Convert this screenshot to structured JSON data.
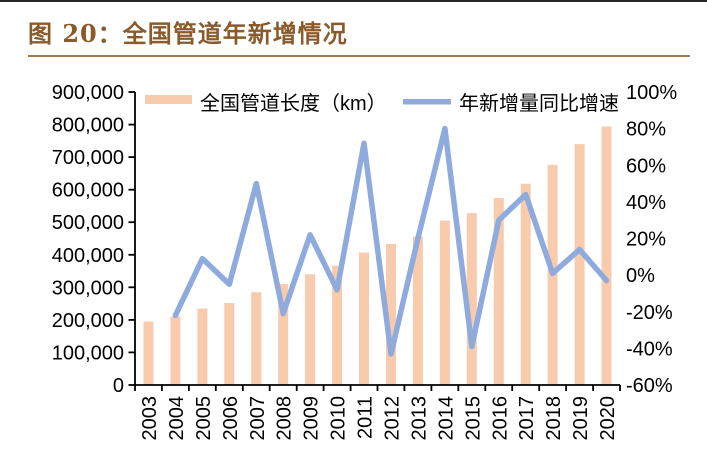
{
  "page": {
    "figure_label": "图 20：",
    "figure_title": "全国管道年新增情况",
    "accent_color": "#8A5A2B"
  },
  "chart_data": {
    "type": "bar",
    "title": "全国管道年新增情况",
    "categories": [
      "2003",
      "2004",
      "2005",
      "2006",
      "2007",
      "2008",
      "2009",
      "2010",
      "2011",
      "2012",
      "2013",
      "2014",
      "2015",
      "2016",
      "2017",
      "2018",
      "2019",
      "2020"
    ],
    "series": [
      {
        "name": "全国管道长度（km）",
        "type": "bar",
        "axis": "left",
        "color": "#F8CBAD",
        "values": [
          195000,
          210000,
          235000,
          252000,
          285000,
          310000,
          340000,
          366000,
          407000,
          433000,
          456000,
          505000,
          528000,
          574000,
          618000,
          676000,
          740000,
          794000
        ]
      },
      {
        "name": "年新增量同比增速",
        "type": "line",
        "axis": "right",
        "color": "#8FAADC",
        "unit": "%",
        "values": [
          null,
          -22,
          9,
          -5,
          50,
          -21,
          22,
          -8,
          72,
          -43,
          20,
          80,
          -39,
          30,
          44,
          1,
          14,
          -3
        ]
      }
    ],
    "left_axis": {
      "min": 0,
      "max": 900000,
      "step": 100000,
      "tick_labels": [
        "0",
        "100,000",
        "200,000",
        "300,000",
        "400,000",
        "500,000",
        "600,000",
        "700,000",
        "800,000",
        "900,000"
      ]
    },
    "right_axis": {
      "min": -60,
      "max": 100,
      "step": 20,
      "tick_labels": [
        "-60%",
        "-40%",
        "-20%",
        "0%",
        "20%",
        "40%",
        "60%",
        "80%",
        "100%"
      ]
    },
    "legend_position": "top",
    "grid": "off"
  }
}
